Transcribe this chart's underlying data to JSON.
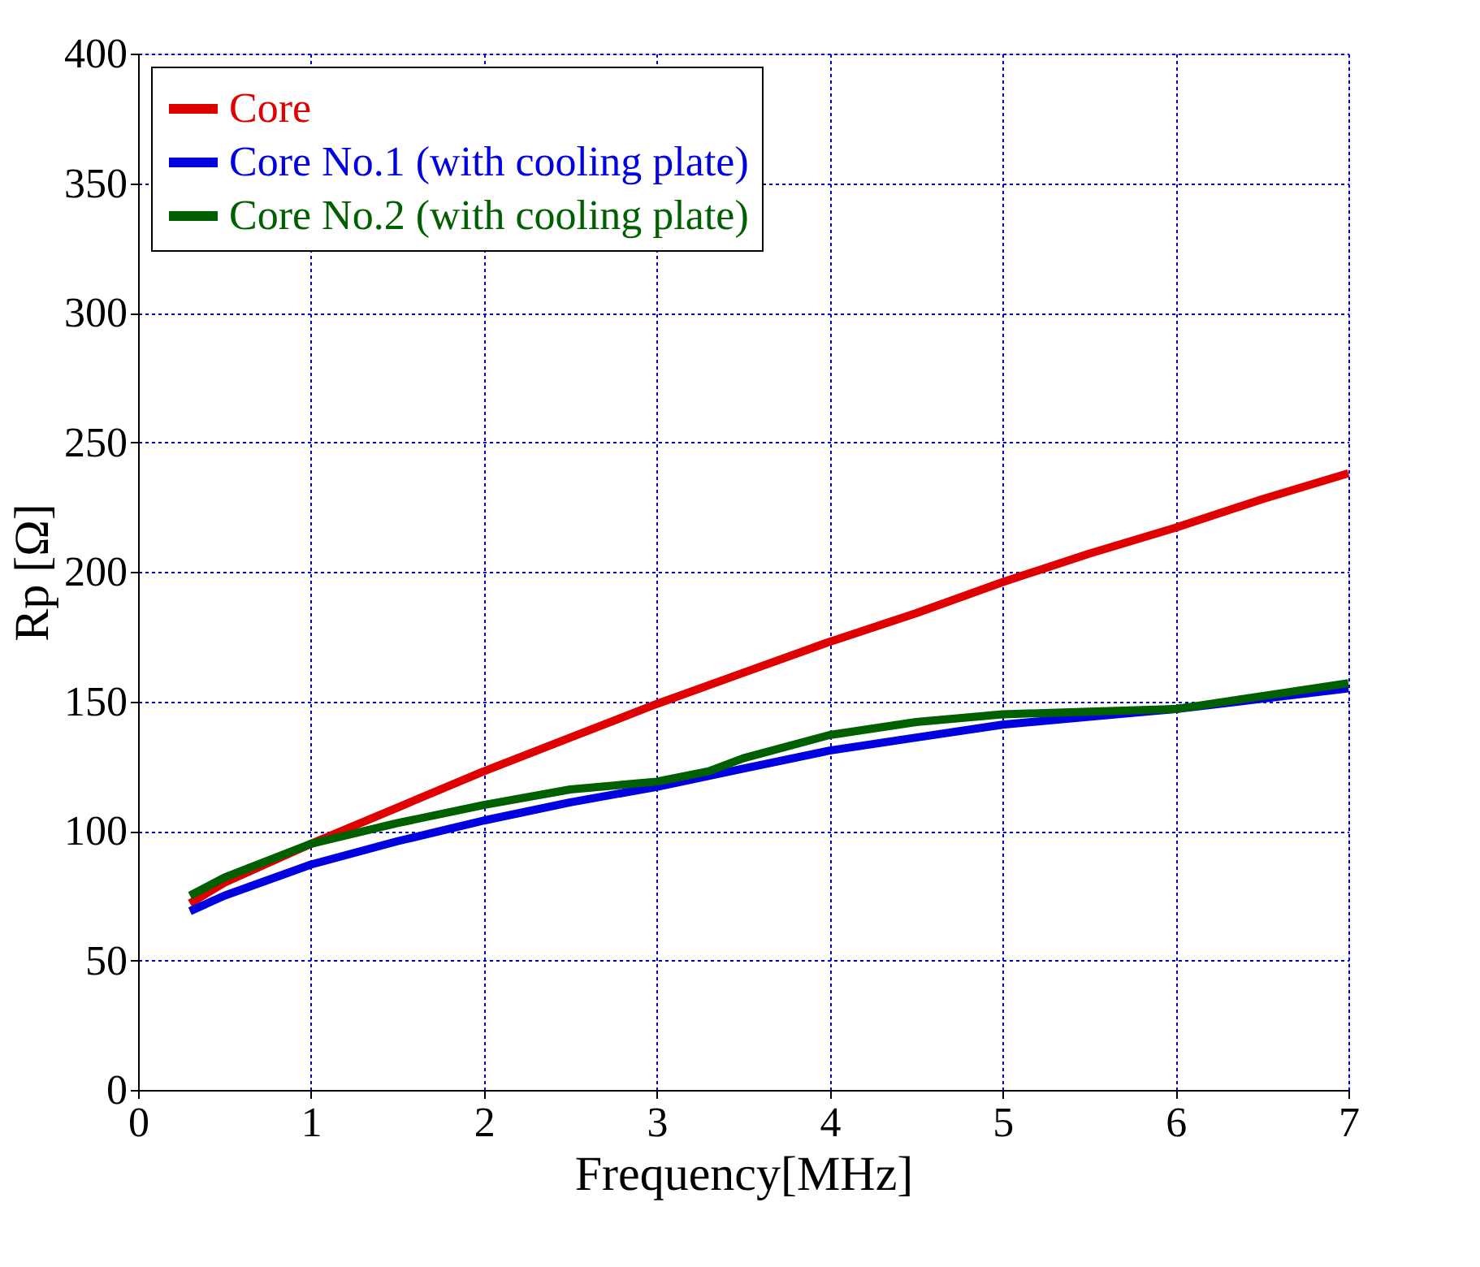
{
  "chart_data": {
    "type": "line",
    "xlabel": "Frequency[MHz]",
    "ylabel": "Rp [Ω]",
    "xlim": [
      0,
      7
    ],
    "ylim": [
      0,
      400
    ],
    "xticks": [
      0,
      1,
      2,
      3,
      4,
      5,
      6,
      7
    ],
    "yticks": [
      0,
      50,
      100,
      150,
      200,
      250,
      300,
      350,
      400
    ],
    "grid": true,
    "legend": "top left",
    "line_style": "solid",
    "marker": "none",
    "series": [
      {
        "name": "Core",
        "color": "#e00000",
        "x": [
          0.3,
          0.5,
          1,
          1.5,
          2,
          2.5,
          3,
          3.5,
          4,
          4.5,
          5,
          5.5,
          6,
          6.5,
          7
        ],
        "values": [
          72,
          80,
          95,
          109,
          123,
          136,
          149,
          161,
          173,
          184,
          196,
          207,
          217,
          228,
          238
        ]
      },
      {
        "name": "Core No.1 (with cooling plate)",
        "color": "#0000e0",
        "x": [
          0.3,
          0.5,
          1,
          1.5,
          2,
          2.5,
          3,
          3.5,
          4,
          4.5,
          5,
          5.5,
          6,
          6.5,
          7
        ],
        "values": [
          69,
          75,
          87,
          96,
          104,
          111,
          117,
          124,
          131,
          136,
          141,
          144,
          147,
          151,
          155
        ]
      },
      {
        "name": "Core No.2 (with cooling plate)",
        "color": "#006000",
        "x": [
          0.3,
          0.5,
          1,
          1.5,
          2,
          2.5,
          3,
          3.3,
          3.5,
          4,
          4.5,
          5,
          5.5,
          6,
          6.5,
          7
        ],
        "values": [
          75,
          82,
          95,
          103,
          110,
          116,
          119,
          123,
          128,
          137,
          142,
          145,
          146,
          147,
          152,
          157
        ]
      }
    ]
  }
}
